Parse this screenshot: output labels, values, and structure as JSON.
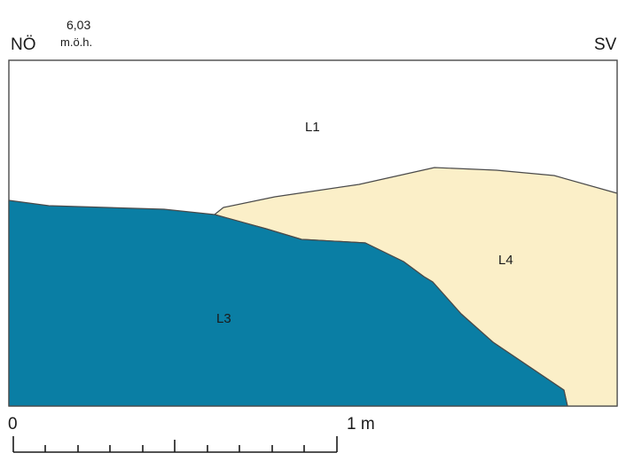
{
  "orientation": {
    "left": "NÖ",
    "right": "SV"
  },
  "elevation": {
    "value": "6,03",
    "unit": "m.ö.h."
  },
  "layers": [
    {
      "id": "L1",
      "label": "L1",
      "color": "#ffffff"
    },
    {
      "id": "L3",
      "label": "L3",
      "color": "#0a7ea4"
    },
    {
      "id": "L4",
      "label": "L4",
      "color": "#fbefc8"
    }
  ],
  "scale": {
    "start_label": "0",
    "end_label": "1 m"
  },
  "colors": {
    "line": "#4a4a4a",
    "l3_fill": "#0a7ea4",
    "l4_fill": "#fbefc8"
  }
}
